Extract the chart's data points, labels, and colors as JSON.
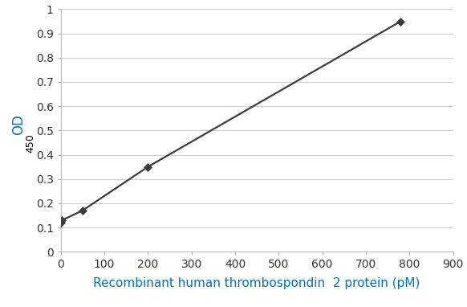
{
  "x": [
    0,
    3,
    50,
    200,
    780
  ],
  "y": [
    0.12,
    0.13,
    0.17,
    0.35,
    0.95
  ],
  "xlim": [
    0,
    900
  ],
  "ylim": [
    0,
    1.0
  ],
  "xticks": [
    0,
    100,
    200,
    300,
    400,
    500,
    600,
    700,
    800,
    900
  ],
  "yticks": [
    0,
    0.1,
    0.2,
    0.3,
    0.4,
    0.5,
    0.6,
    0.7,
    0.8,
    0.9,
    1.0
  ],
  "xlabel": "Recombinant human thrombospondin  2 protein (pM)",
  "ylabel_text": "OD",
  "ylabel_sub": "450",
  "line_color": "#3c3c3c",
  "marker": "D",
  "marker_color": "#3c3c3c",
  "marker_size": 5,
  "line_width": 1.6,
  "background_color": "#ffffff",
  "grid_color": "#cccccc",
  "xlabel_color": "#0070c0",
  "ylabel_od_color": "#0070c0",
  "ylabel_sub_color": "#000000",
  "tick_label_fontsize": 10,
  "xlabel_fontsize": 11,
  "ylabel_fontsize": 12,
  "ylabel_sub_fontsize": 9
}
